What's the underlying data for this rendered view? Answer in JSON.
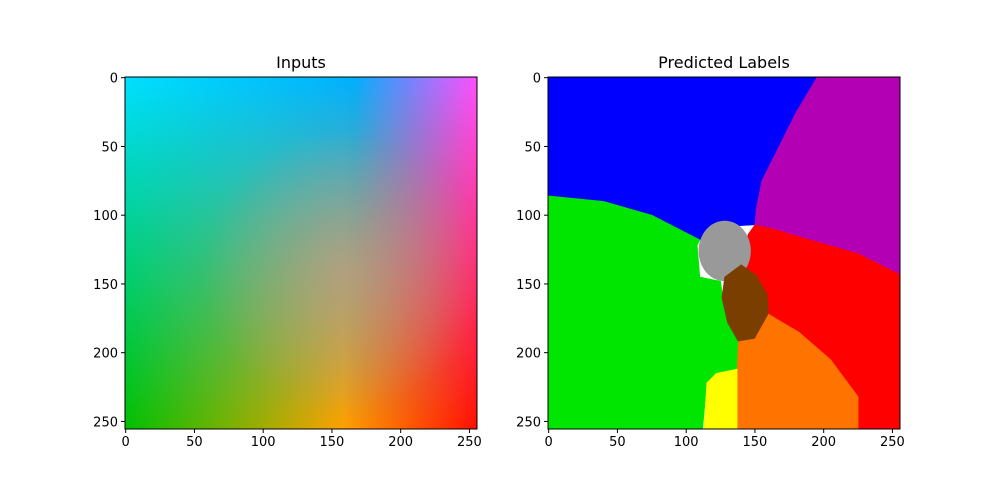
{
  "chart_data": [
    {
      "type": "heatmap",
      "title": "Inputs",
      "xlabel": "",
      "ylabel": "",
      "xlim": [
        0,
        255
      ],
      "ylim": [
        255,
        0
      ],
      "x_ticks": [
        0,
        50,
        100,
        150,
        200,
        250
      ],
      "y_ticks": [
        0,
        50,
        100,
        150,
        200,
        250
      ],
      "grid": false,
      "corner_colors": {
        "top_left": "#00e0ff",
        "top_right": "#ff50ff",
        "bottom_left": "#00c000",
        "bottom_right": "#ff1000"
      },
      "band_colors": {
        "top_middle": "#00b0ff",
        "bottom_middle": "#ffa000",
        "center": "#d09a88"
      }
    },
    {
      "type": "heatmap",
      "title": "Predicted Labels",
      "xlabel": "",
      "ylabel": "",
      "xlim": [
        0,
        255
      ],
      "ylim": [
        255,
        0
      ],
      "x_ticks": [
        0,
        50,
        100,
        150,
        200,
        250
      ],
      "y_ticks": [
        0,
        50,
        100,
        150,
        200,
        250
      ],
      "grid": false,
      "regions": [
        {
          "color": "#0000ff",
          "polygon": [
            [
              0,
              0
            ],
            [
              195,
              0
            ],
            [
              180,
              25
            ],
            [
              165,
              55
            ],
            [
              155,
              75
            ],
            [
              151,
              95
            ],
            [
              150,
              107
            ],
            [
              132,
              108
            ],
            [
              115,
              115
            ],
            [
              110,
              118
            ],
            [
              75,
              100
            ],
            [
              40,
              90
            ],
            [
              0,
              86
            ]
          ]
        },
        {
          "color": "#b400b4",
          "polygon": [
            [
              195,
              0
            ],
            [
              255,
              0
            ],
            [
              255,
              143
            ],
            [
              225,
              128
            ],
            [
              190,
              118
            ],
            [
              163,
              110
            ],
            [
              150,
              107
            ],
            [
              151,
              95
            ],
            [
              155,
              75
            ],
            [
              165,
              55
            ],
            [
              180,
              25
            ]
          ]
        },
        {
          "color": "#00e600",
          "polygon": [
            [
              0,
              86
            ],
            [
              40,
              90
            ],
            [
              75,
              100
            ],
            [
              110,
              118
            ],
            [
              108,
              122
            ],
            [
              110,
              145
            ],
            [
              125,
              148
            ],
            [
              128,
              170
            ],
            [
              138,
              190
            ],
            [
              138,
              212
            ],
            [
              122,
              218
            ],
            [
              115,
              222
            ],
            [
              112,
              255
            ],
            [
              0,
              255
            ]
          ]
        },
        {
          "color": "#ff0000",
          "polygon": [
            [
              150,
              107
            ],
            [
              163,
              110
            ],
            [
              190,
              118
            ],
            [
              225,
              128
            ],
            [
              255,
              143
            ],
            [
              255,
              255
            ],
            [
              225,
              255
            ],
            [
              225,
              232
            ],
            [
              205,
              205
            ],
            [
              182,
              185
            ],
            [
              170,
              178
            ],
            [
              160,
              172
            ],
            [
              145,
              158
            ],
            [
              140,
              137
            ],
            [
              145,
              114
            ]
          ]
        },
        {
          "color": "#999999",
          "ellipse": {
            "cx": 128,
            "cy": 126,
            "rx": 19,
            "ry": 22
          }
        },
        {
          "color": "#7a3e00",
          "polygon": [
            [
              140,
              136
            ],
            [
              151,
              144
            ],
            [
              159,
              158
            ],
            [
              160,
              175
            ],
            [
              150,
              190
            ],
            [
              138,
              192
            ],
            [
              130,
              178
            ],
            [
              126,
              160
            ],
            [
              128,
              145
            ]
          ]
        },
        {
          "color": "#ff7300",
          "polygon": [
            [
              138,
              192
            ],
            [
              150,
              190
            ],
            [
              160,
              172
            ],
            [
              170,
              178
            ],
            [
              182,
              185
            ],
            [
              205,
              205
            ],
            [
              225,
              232
            ],
            [
              225,
              255
            ],
            [
              137,
              255
            ],
            [
              137,
              212
            ]
          ]
        },
        {
          "color": "#ffff00",
          "polygon": [
            [
              137,
              212
            ],
            [
              122,
              215
            ],
            [
              115,
              222
            ],
            [
              113,
              255
            ],
            [
              137,
              255
            ]
          ]
        }
      ]
    }
  ]
}
